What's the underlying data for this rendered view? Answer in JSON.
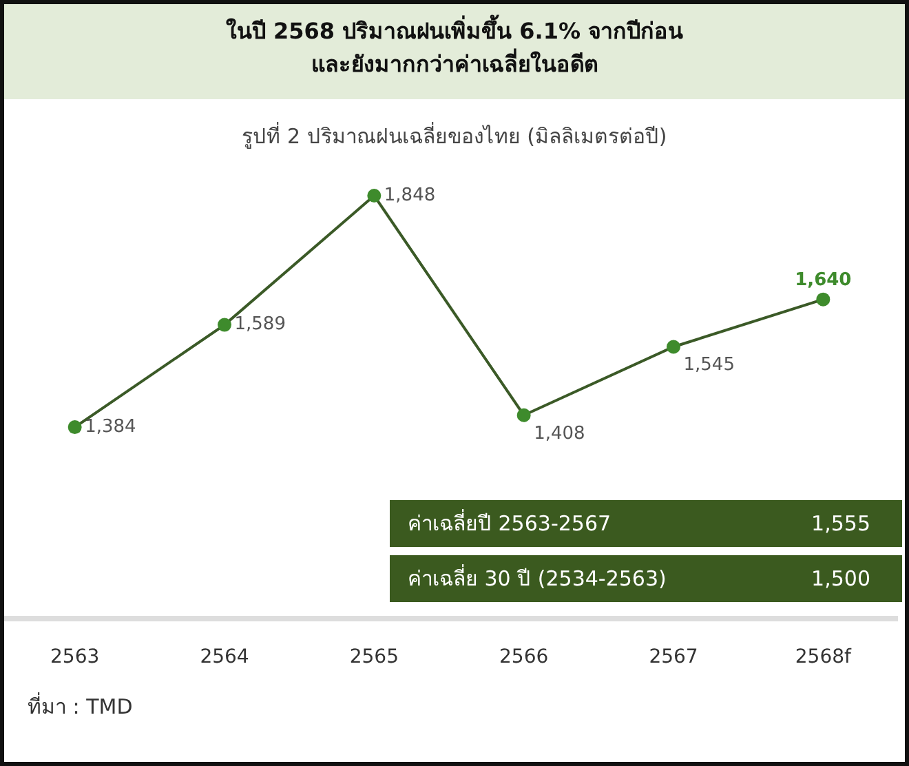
{
  "chart_data": {
    "type": "line",
    "title": "ในปี 2568 ปริมาณฝนเพิ่มขึ้น 6.1% จากปีก่อน\nและยังมากกว่าค่าเฉลี่ยในอดีต",
    "subtitle": "รูปที่ 2 ปริมาณฝนเฉลี่ยของไทย (มิลลิเมตรต่อปี)",
    "categories": [
      "2563",
      "2564",
      "2565",
      "2566",
      "2567",
      "2568f"
    ],
    "series": [
      {
        "color": "#3b5a27",
        "colors": [
          "#3e8b2c",
          "#3e8b2c",
          "#3e8b2c",
          "#3e8b2c",
          "#3e8b2c",
          "#3e8b2c"
        ],
        "values": [
          1384,
          1589,
          1848,
          1408,
          1545,
          1640
        ],
        "value_labels": [
          "1,384",
          "1,589",
          "1,848",
          "1,408",
          "1,545",
          "1,640"
        ]
      }
    ],
    "marker": "circle",
    "tick_labels": "x",
    "annotations": [
      "ค่าเฉลี่ยปี 2563-2567",
      "1,555",
      "ค่าเฉลี่ย 30 ปี (2534-2563)",
      "1,500",
      "ที่มา : TMD"
    ]
  }
}
